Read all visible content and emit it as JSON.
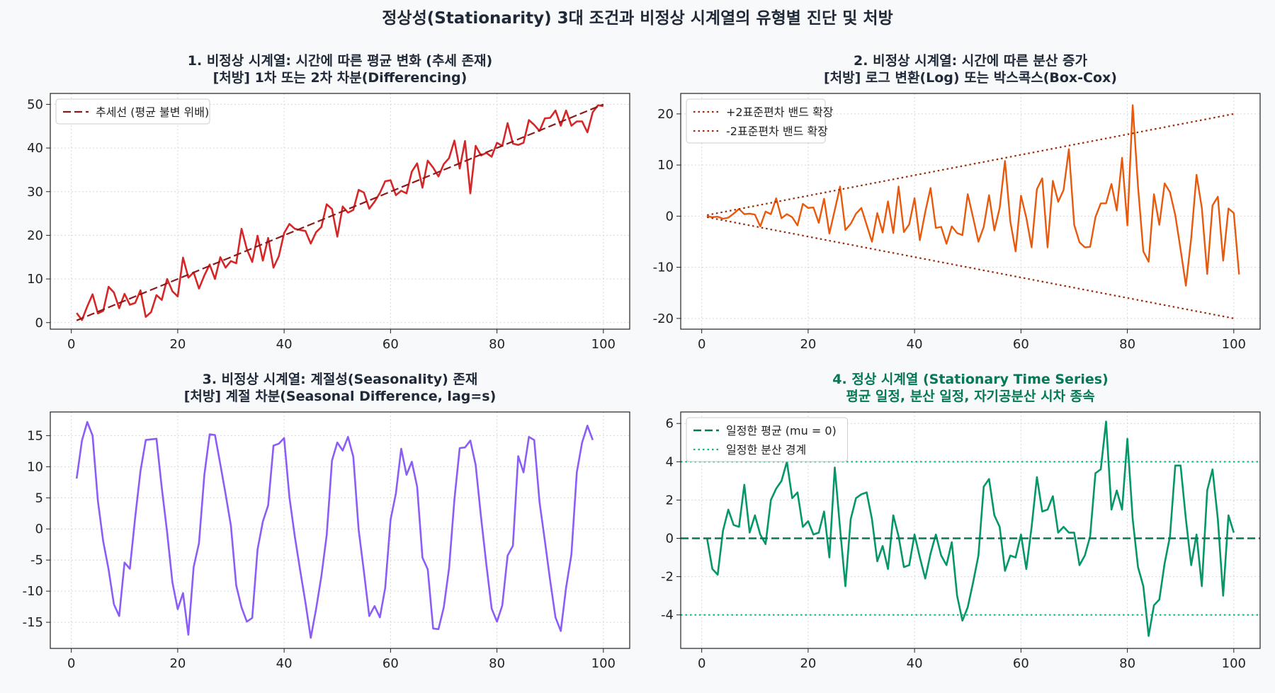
{
  "figure": {
    "suptitle": "정상성(Stationarity) 3대 조건과 비정상 시계열의 유형별 진단 및 처방"
  },
  "chart_data": [
    {
      "type": "line",
      "title": [
        "1. 비정상 시계열: 시간에 따른 평균 변화 (추세 존재)",
        "[처방] 1차 또는 2차 차분(Differencing)"
      ],
      "title_color": "#1f2937",
      "xlim": [
        -3.95,
        104.95
      ],
      "ylim": [
        -1.5,
        52.5
      ],
      "xticks": [
        0,
        20,
        40,
        60,
        80,
        100
      ],
      "yticks": [
        0,
        10,
        20,
        30,
        40,
        50
      ],
      "grid": true,
      "legend_position": "upper-left",
      "series": [
        {
          "name": "",
          "color": "#d62728",
          "style": "solid",
          "width": 2.6,
          "x_start": 1,
          "values": [
            2.2,
            0.6,
            3.7,
            6.5,
            2.1,
            2.7,
            8.2,
            6.9,
            3.3,
            6.6,
            4.1,
            4.5,
            7.4,
            1.3,
            2.4,
            6.3,
            5.2,
            10.0,
            7.2,
            6.0,
            14.9,
            10.3,
            11.5,
            7.8,
            10.8,
            13.3,
            10.0,
            15.0,
            12.6,
            14.1,
            13.6,
            21.5,
            16.8,
            13.9,
            19.9,
            14.2,
            19.4,
            12.6,
            15.2,
            20.5,
            22.6,
            21.5,
            21.2,
            21.0,
            18.1,
            20.7,
            21.9,
            27.1,
            26.0,
            19.7,
            26.6,
            25.2,
            25.8,
            30.4,
            29.8,
            26.1,
            27.7,
            29.7,
            32.4,
            32.6,
            29.2,
            30.2,
            29.6,
            34.6,
            36.5,
            30.9,
            37.1,
            35.5,
            33.5,
            36.3,
            37.7,
            41.7,
            35.3,
            41.6,
            29.6,
            40.5,
            38.3,
            38.9,
            38.0,
            41.2,
            40.5,
            45.7,
            41.0,
            40.7,
            41.2,
            46.4,
            45.3,
            43.9,
            46.8,
            46.9,
            48.6,
            45.1,
            48.6,
            45.1,
            46.1,
            46.1,
            43.6,
            48.2,
            49.8,
            49.6
          ]
        },
        {
          "name": "추세선 (평균 불변 위배)",
          "color": "#8b1a1a",
          "style": "dashed",
          "width": 2.2,
          "x": [
            1,
            100
          ],
          "y": [
            0.5,
            50.0
          ]
        }
      ]
    },
    {
      "type": "line",
      "title": [
        "2. 비정상 시계열: 시간에 따른 분산 증가",
        "[처방] 로그 변환(Log) 또는 박스콕스(Box-Cox)"
      ],
      "title_color": "#1f2937",
      "xlim": [
        -3.95,
        104.95
      ],
      "ylim": [
        -22.1,
        24.0
      ],
      "xticks": [
        0,
        20,
        40,
        60,
        80,
        100
      ],
      "yticks": [
        -20,
        -10,
        0,
        10,
        20
      ],
      "grid": true,
      "legend_position": "upper-left",
      "series": [
        {
          "name": "",
          "color": "#e8590c",
          "style": "solid",
          "width": 2.4,
          "x_start": 1,
          "values": [
            0.0,
            -0.2,
            -0.1,
            -0.5,
            -0.3,
            0.5,
            1.4,
            0.4,
            0.5,
            0.3,
            -2.0,
            0.9,
            0.4,
            3.5,
            -0.4,
            0.4,
            -0.2,
            -1.8,
            2.4,
            1.6,
            1.7,
            -1.3,
            3.4,
            -3.4,
            1.2,
            5.8,
            -2.7,
            -1.5,
            0.5,
            1.6,
            -1.7,
            -5.0,
            0.6,
            -3.2,
            2.9,
            -3.3,
            5.8,
            -3.1,
            -1.6,
            3.5,
            -4.7,
            0.8,
            5.5,
            -2.3,
            -2.1,
            -5.4,
            -2.0,
            -3.3,
            -3.7,
            4.3,
            -0.3,
            -5.0,
            -2.1,
            4.1,
            -2.8,
            1.6,
            10.8,
            -1.0,
            -6.9,
            4.0,
            -0.3,
            -6.1,
            5.3,
            7.4,
            -6.1,
            6.9,
            2.8,
            5.1,
            13.1,
            -1.7,
            -5.1,
            -6.1,
            -6.0,
            -0.2,
            2.5,
            2.5,
            6.3,
            1.1,
            11.4,
            -1.8,
            21.7,
            5.8,
            -6.9,
            -8.9,
            4.3,
            -1.7,
            6.4,
            4.7,
            0.2,
            -6.5,
            -13.6,
            -4.3,
            8.1,
            1.6,
            -11.3,
            2.1,
            3.8,
            -8.7,
            1.5,
            0.6,
            -11.4
          ]
        },
        {
          "name": "+2표준편차 밴드 확장",
          "color": "#9a2a0a",
          "style": "dotted",
          "width": 2.2,
          "x": [
            1,
            100
          ],
          "y": [
            0.2,
            20.0
          ]
        },
        {
          "name": "-2표준편차 밴드 확장",
          "color": "#9a2a0a",
          "style": "dotted",
          "width": 2.2,
          "x": [
            1,
            100
          ],
          "y": [
            -0.2,
            -20.0
          ]
        }
      ]
    },
    {
      "type": "line",
      "title": [
        "3. 비정상 시계열: 계절성(Seasonality) 존재",
        "[처방] 계절 차분(Seasonal Difference, lag=s)"
      ],
      "title_color": "#1f2937",
      "xlim": [
        -3.95,
        104.95
      ],
      "ylim": [
        -19.2,
        18.8
      ],
      "xticks": [
        0,
        20,
        40,
        60,
        80,
        100
      ],
      "yticks": [
        -15,
        -10,
        -5,
        0,
        5,
        10,
        15
      ],
      "grid": true,
      "legend_position": "",
      "series": [
        {
          "name": "",
          "color": "#8b5cf6",
          "style": "solid",
          "width": 2.6,
          "x_start": 1,
          "values": [
            8.1,
            14.2,
            17.2,
            15.0,
            4.5,
            -2.0,
            -6.5,
            -12.1,
            -14.0,
            -5.4,
            -6.4,
            1.8,
            9.3,
            14.3,
            14.4,
            14.5,
            6.6,
            -0.5,
            -8.6,
            -12.9,
            -10.3,
            -17.0,
            -6.1,
            -2.3,
            8.7,
            15.2,
            15.1,
            10.4,
            5.6,
            0.5,
            -9.1,
            -12.6,
            -14.9,
            -14.3,
            -3.3,
            1.2,
            3.8,
            13.4,
            13.7,
            14.6,
            5.1,
            -1.2,
            -6.6,
            -11.8,
            -17.5,
            -12.9,
            -7.6,
            -1.0,
            11.0,
            13.9,
            12.6,
            14.8,
            11.6,
            -0.1,
            -6.9,
            -14.0,
            -12.4,
            -14.2,
            -9.5,
            1.5,
            5.7,
            12.9,
            8.7,
            10.8,
            6.8,
            -4.6,
            -6.5,
            -16.0,
            -16.1,
            -12.6,
            -6.3,
            4.7,
            13.0,
            13.1,
            14.2,
            10.3,
            1.9,
            -5.7,
            -12.8,
            -14.9,
            -12.3,
            -4.3,
            -2.7,
            11.7,
            9.1,
            14.8,
            14.3,
            4.3,
            -1.9,
            -8.3,
            -14.2,
            -16.4,
            -9.4,
            -4.1,
            9.1,
            13.9,
            16.6,
            14.3
          ]
        }
      ]
    },
    {
      "type": "line",
      "title": [
        "4. 정상 시계열 (Stationary Time Series)",
        "평균 일정, 분산 일정, 자기공분산 시차 종속"
      ],
      "title_color": "#047857",
      "xlim": [
        -3.95,
        104.95
      ],
      "ylim": [
        -5.75,
        6.6
      ],
      "xticks": [
        0,
        20,
        40,
        60,
        80,
        100
      ],
      "yticks": [
        -4,
        -2,
        0,
        2,
        4,
        6
      ],
      "grid": true,
      "legend_position": "upper-left",
      "series": [
        {
          "name": "",
          "color": "#059669",
          "style": "solid",
          "width": 2.6,
          "x_start": 1,
          "values": [
            0.0,
            -1.6,
            -1.9,
            0.4,
            1.5,
            0.7,
            0.6,
            2.8,
            0.3,
            1.2,
            0.2,
            -0.3,
            2.0,
            2.6,
            3.0,
            4.0,
            2.1,
            2.4,
            0.6,
            0.9,
            0.2,
            0.3,
            1.4,
            -1.0,
            3.7,
            0.5,
            -2.5,
            1.0,
            2.1,
            2.3,
            2.4,
            1.0,
            -1.2,
            -0.4,
            -1.6,
            1.2,
            0.1,
            -1.5,
            -1.4,
            0.2,
            -1.0,
            -2.1,
            -0.8,
            0.2,
            -0.9,
            -1.4,
            -0.2,
            -3.0,
            -4.3,
            -3.6,
            -2.3,
            -0.9,
            2.7,
            3.1,
            1.2,
            0.6,
            -1.7,
            -0.9,
            -1.0,
            0.2,
            -1.6,
            0.6,
            3.2,
            1.4,
            1.5,
            2.2,
            0.3,
            0.6,
            0.3,
            0.3,
            -1.4,
            -0.9,
            0.1,
            3.4,
            3.6,
            6.1,
            1.5,
            2.5,
            1.5,
            5.2,
            1.0,
            -1.5,
            -2.5,
            -5.1,
            -3.5,
            -3.2,
            -1.3,
            0.1,
            3.8,
            3.8,
            1.0,
            -1.4,
            0.2,
            -2.5,
            2.5,
            3.6,
            1.0,
            -3.0,
            1.2,
            0.3
          ]
        },
        {
          "name": "일정한 평균 (mu = 0)",
          "color": "#047857",
          "style": "dashed",
          "width": 2.4,
          "hline": 0
        },
        {
          "name": "일정한 분산 경계",
          "color": "#10b981",
          "style": "dotted",
          "width": 2.2,
          "hline": 4
        },
        {
          "name": "",
          "color": "#10b981",
          "style": "dotted",
          "width": 2.2,
          "hline": -4
        }
      ]
    }
  ]
}
